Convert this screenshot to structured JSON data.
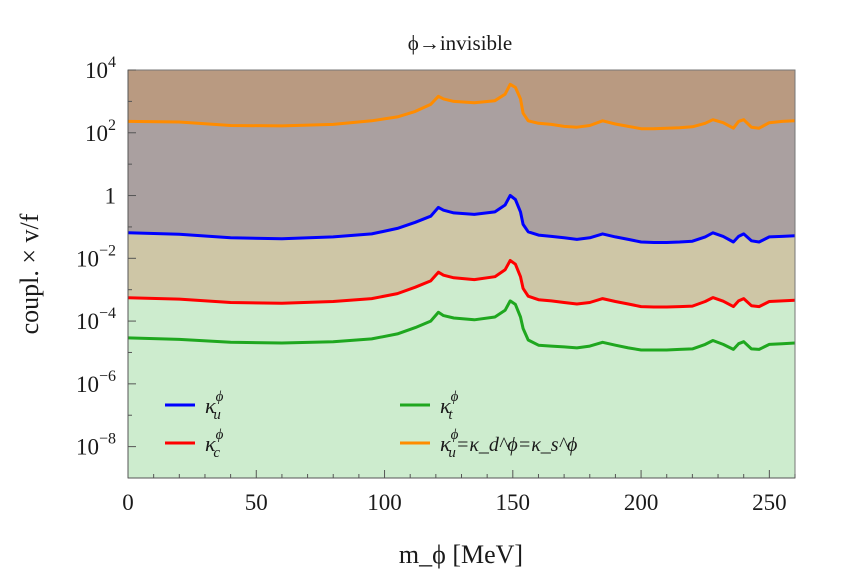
{
  "chart_data": {
    "type": "area",
    "title": "ϕ→invisible",
    "xlabel": "m_ϕ [MeV]",
    "ylabel": "coupl. × v/f",
    "xlim": [
      0,
      260
    ],
    "ylim": [
      1e-09,
      10000
    ],
    "y_scale": "log",
    "x_ticks": [
      0,
      50,
      100,
      150,
      200,
      250
    ],
    "y_ticks": [
      {
        "value": 10000,
        "base": "10",
        "exp": "4"
      },
      {
        "value": 100,
        "base": "10",
        "exp": "2"
      },
      {
        "value": 1,
        "base": "1",
        "exp": ""
      },
      {
        "value": 0.01,
        "base": "10",
        "exp": "−2"
      },
      {
        "value": 0.0001,
        "base": "10",
        "exp": "−4"
      },
      {
        "value": 1e-06,
        "base": "10",
        "exp": "−6"
      },
      {
        "value": 1e-08,
        "base": "10",
        "exp": "−8"
      }
    ],
    "grid": false,
    "legend_position": "bottom-left",
    "x": [
      0,
      20,
      40,
      60,
      80,
      95,
      105,
      112,
      118,
      121,
      123,
      127,
      135,
      143,
      147,
      149,
      151,
      153,
      154,
      156,
      160,
      165,
      170,
      175,
      180,
      185,
      190,
      195,
      200,
      205,
      210,
      215,
      220,
      225,
      228,
      232,
      236,
      238,
      240,
      243,
      246,
      250,
      255,
      260
    ],
    "series": [
      {
        "name": "κ_u^ϕ=κ_d^ϕ=κ_s^ϕ",
        "color": "#ff8c00",
        "fill": "#b99a81",
        "values": [
          230,
          220,
          170,
          165,
          185,
          240,
          320,
          480,
          800,
          1450,
          1200,
          1000,
          900,
          1050,
          1700,
          3500,
          2800,
          1200,
          420,
          240,
          200,
          185,
          160,
          150,
          170,
          240,
          190,
          160,
          135,
          135,
          140,
          145,
          155,
          200,
          260,
          210,
          140,
          230,
          260,
          150,
          140,
          210,
          230,
          240
        ]
      },
      {
        "name": "κ_u^ϕ",
        "color": "#0000ff",
        "fill": "#aaa0a0",
        "values": [
          0.065,
          0.058,
          0.045,
          0.042,
          0.048,
          0.06,
          0.09,
          0.14,
          0.22,
          0.42,
          0.34,
          0.28,
          0.25,
          0.3,
          0.5,
          1.0,
          0.75,
          0.3,
          0.12,
          0.07,
          0.055,
          0.05,
          0.045,
          0.04,
          0.045,
          0.06,
          0.048,
          0.04,
          0.033,
          0.032,
          0.032,
          0.033,
          0.035,
          0.048,
          0.065,
          0.05,
          0.033,
          0.05,
          0.06,
          0.036,
          0.033,
          0.048,
          0.05,
          0.052
        ]
      },
      {
        "name": "κ_c^ϕ",
        "color": "#ff0000",
        "fill": "#cec6a6",
        "values": [
          0.00055,
          0.0005,
          0.00039,
          0.00037,
          0.00042,
          0.00052,
          0.00075,
          0.0012,
          0.0019,
          0.0036,
          0.0029,
          0.0024,
          0.0021,
          0.0026,
          0.0043,
          0.0085,
          0.0065,
          0.0026,
          0.0011,
          0.00062,
          0.00048,
          0.00044,
          0.00039,
          0.00035,
          0.00039,
          0.00052,
          0.00042,
          0.00035,
          0.00029,
          0.00028,
          0.00028,
          0.00029,
          0.0003,
          0.00042,
          0.00056,
          0.00043,
          0.00029,
          0.00044,
          0.00052,
          0.00031,
          0.00029,
          0.00042,
          0.00044,
          0.00046
        ]
      },
      {
        "name": "κ_t^ϕ",
        "color": "#1fa71f",
        "fill": "#cdecce",
        "values": [
          2.9e-05,
          2.6e-05,
          2.1e-05,
          2e-05,
          2.2e-05,
          2.7e-05,
          3.9e-05,
          6.2e-05,
          0.0001,
          0.00019,
          0.00015,
          0.000125,
          0.00011,
          0.000135,
          0.00022,
          0.00044,
          0.00034,
          0.000135,
          5.8e-05,
          2.5e-05,
          1.7e-05,
          1.6e-05,
          1.5e-05,
          1.4e-05,
          1.6e-05,
          2.1e-05,
          1.7e-05,
          1.4e-05,
          1.2e-05,
          1.2e-05,
          1.2e-05,
          1.25e-05,
          1.3e-05,
          1.8e-05,
          2.4e-05,
          1.8e-05,
          1.25e-05,
          1.9e-05,
          2.2e-05,
          1.3e-05,
          1.25e-05,
          1.8e-05,
          1.9e-05,
          2e-05
        ]
      }
    ],
    "legend": [
      {
        "label": "κ",
        "sub": "u",
        "sup": "ϕ",
        "series": 1
      },
      {
        "label": "κ",
        "sub": "t",
        "sup": "ϕ",
        "series": 3
      },
      {
        "label": "κ",
        "sub": "c",
        "sup": "ϕ",
        "series": 2
      },
      {
        "label": "κ",
        "sub": "u",
        "sup": "ϕ",
        "extra": "=κ_d^ϕ=κ_s^ϕ",
        "series": 0
      }
    ]
  }
}
